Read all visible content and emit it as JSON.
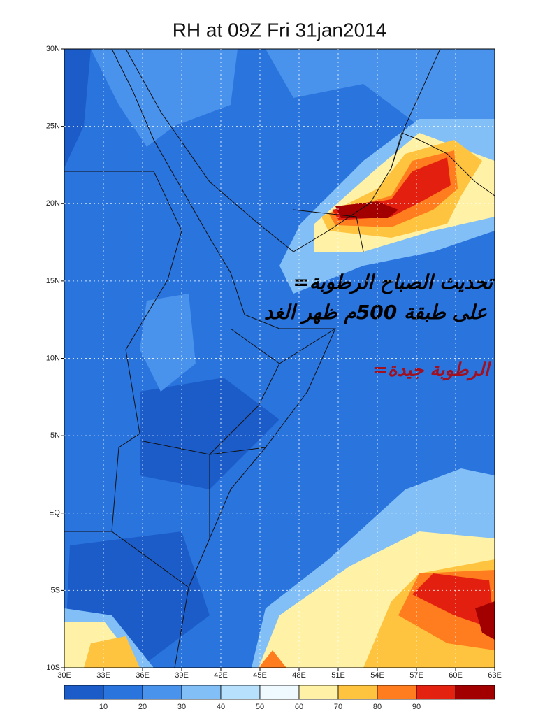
{
  "title": "RH at 09Z Fri 31jan2014",
  "extent": {
    "lon": [
      30,
      63
    ],
    "lat": [
      -10,
      30
    ]
  },
  "lat_ticks": [
    {
      "value": 30,
      "label": "30N"
    },
    {
      "value": 25,
      "label": "25N"
    },
    {
      "value": 20,
      "label": "20N"
    },
    {
      "value": 15,
      "label": "15N"
    },
    {
      "value": 10,
      "label": "10N"
    },
    {
      "value": 5,
      "label": "5N"
    },
    {
      "value": 0,
      "label": "EQ"
    },
    {
      "value": -5,
      "label": "5S"
    },
    {
      "value": -10,
      "label": "10S"
    }
  ],
  "lon_ticks": [
    {
      "value": 30,
      "label": "30E"
    },
    {
      "value": 33,
      "label": "33E"
    },
    {
      "value": 36,
      "label": "36E"
    },
    {
      "value": 39,
      "label": "39E"
    },
    {
      "value": 42,
      "label": "42E"
    },
    {
      "value": 45,
      "label": "45E"
    },
    {
      "value": 48,
      "label": "48E"
    },
    {
      "value": 51,
      "label": "51E"
    },
    {
      "value": 54,
      "label": "54E"
    },
    {
      "value": 57,
      "label": "57E"
    },
    {
      "value": 60,
      "label": "60E"
    },
    {
      "value": 63,
      "label": "63E"
    }
  ],
  "colorbar": {
    "colors": [
      "#1c5cc9",
      "#2a74de",
      "#4a93ec",
      "#82bff7",
      "#b6e0fb",
      "#eefaff",
      "#fff2a6",
      "#ffc43f",
      "#ff7d1e",
      "#e3220f",
      "#a20000"
    ],
    "ticks": [
      10,
      20,
      30,
      40,
      50,
      60,
      70,
      80,
      90
    ]
  },
  "annotations": [
    "=تحديث الصباح الرطوبة",
    "على طبقة 500م ظهر الغد",
    "=الرطوبة جيدة"
  ]
}
